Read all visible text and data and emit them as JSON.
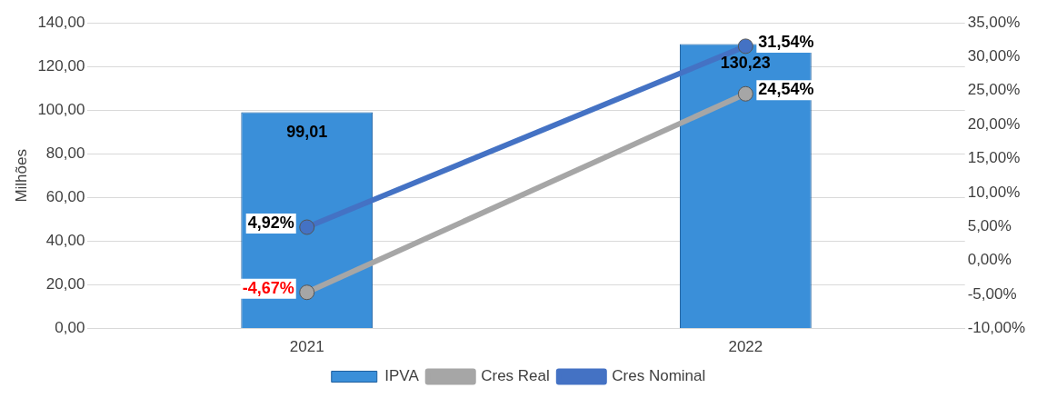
{
  "chart_data": {
    "type": "bar",
    "ylabel": "Milhões",
    "categories": [
      "2021",
      "2022"
    ],
    "series": [
      {
        "name": "IPVA",
        "color": "#3a8fd9",
        "values": [
          99.01,
          130.23
        ],
        "value_labels": [
          "99,01",
          "130,23"
        ]
      },
      {
        "name": "Cres Real",
        "type": "line",
        "axis": "y2",
        "color": "#a6a6a6",
        "values": [
          -4.67,
          24.54
        ],
        "value_labels": [
          "-4,67%",
          "24,54%"
        ]
      },
      {
        "name": "Cres Nominal",
        "type": "line",
        "axis": "y2",
        "color": "#4472c4",
        "values": [
          4.92,
          31.54
        ],
        "value_labels": [
          "4,92%",
          "31,54%"
        ]
      }
    ],
    "ylim": [
      0,
      140
    ],
    "yticks": [
      {
        "value": 0,
        "label": "0,00"
      },
      {
        "value": 20,
        "label": "20,00"
      },
      {
        "value": 40,
        "label": "40,00"
      },
      {
        "value": 60,
        "label": "60,00"
      },
      {
        "value": 80,
        "label": "80,00"
      },
      {
        "value": 100,
        "label": "100,00"
      },
      {
        "value": 120,
        "label": "120,00"
      },
      {
        "value": 140,
        "label": "140,00"
      }
    ],
    "y2lim": [
      -10,
      35
    ],
    "y2ticks": [
      {
        "value": -10,
        "label": "-10,00%"
      },
      {
        "value": -5,
        "label": "-5,00%"
      },
      {
        "value": 0,
        "label": "0,00%"
      },
      {
        "value": 5,
        "label": "5,00%"
      },
      {
        "value": 10,
        "label": "10,00%"
      },
      {
        "value": 15,
        "label": "15,00%"
      },
      {
        "value": 20,
        "label": "20,00%"
      },
      {
        "value": 25,
        "label": "25,00%"
      },
      {
        "value": 30,
        "label": "30,00%"
      },
      {
        "value": 35,
        "label": "35,00%"
      }
    ],
    "grid": "y",
    "legend": "bottom",
    "marker": "circle",
    "line_style": "solid"
  }
}
